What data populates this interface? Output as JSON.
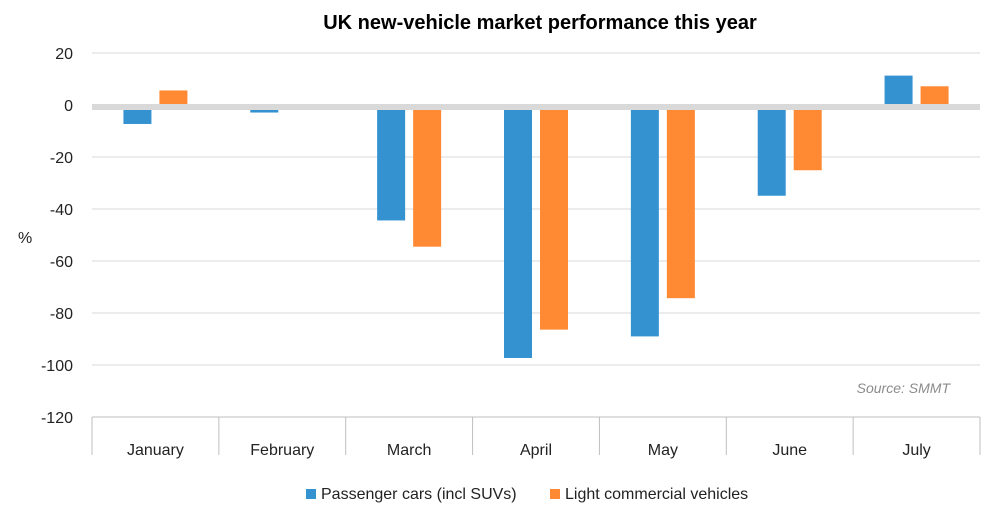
{
  "chart_data": {
    "type": "bar",
    "title": "UK new-vehicle market performance this year",
    "ylabel": "%",
    "xlabel": "",
    "categories": [
      "January",
      "February",
      "March",
      "April",
      "May",
      "June",
      "July"
    ],
    "series": [
      {
        "name": "Passenger cars (incl SUVs)",
        "color": "#3492d1",
        "values": [
          -7.3,
          -2.9,
          -44.4,
          -97.3,
          -89.0,
          -34.9,
          11.3
        ]
      },
      {
        "name": "Light commercial vehicles",
        "color": "#ff8a33",
        "values": [
          5.6,
          -1.7,
          -54.5,
          -86.4,
          -74.3,
          -25.1,
          7.2
        ]
      }
    ],
    "ylim": [
      -120,
      20
    ],
    "yticks": [
      20,
      0,
      -20,
      -40,
      -60,
      -80,
      -100,
      -120
    ],
    "grid": true,
    "legend_position": "bottom",
    "annotation": "Source: SMMT"
  }
}
